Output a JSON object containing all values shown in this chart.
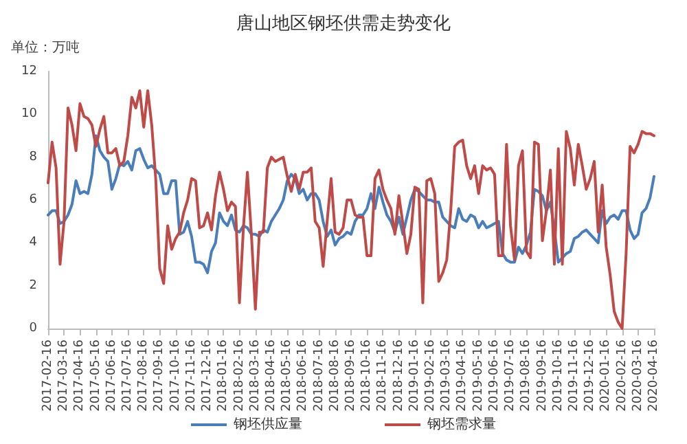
{
  "chart_data": {
    "type": "line",
    "title": "唐山地区钢坯供需走势变化",
    "annotations": [
      "单位：万吨"
    ],
    "categories": [
      "2017-02-16",
      null,
      null,
      null,
      "2017-03-16",
      null,
      null,
      null,
      "2017-04-16",
      null,
      null,
      null,
      "2017-05-16",
      null,
      null,
      null,
      "2017-06-16",
      null,
      null,
      null,
      "2017-07-16",
      null,
      null,
      null,
      "2017-08-16",
      null,
      null,
      null,
      "2017-09-16",
      null,
      null,
      null,
      "2017-10-16",
      null,
      null,
      null,
      "2017-11-16",
      null,
      null,
      null,
      "2017-12-16",
      null,
      null,
      null,
      "2018-01-16",
      null,
      null,
      null,
      "2018-02-16",
      null,
      null,
      null,
      "2018-03-16",
      null,
      null,
      null,
      "2018-04-16",
      null,
      null,
      null,
      "2018-05-16",
      null,
      null,
      null,
      "2018-06-16",
      null,
      null,
      null,
      "2018-07-16",
      null,
      null,
      null,
      "2018-08-16",
      null,
      null,
      null,
      "2018-09-16",
      null,
      null,
      null,
      "2018-10-16",
      null,
      null,
      null,
      "2018-11-16",
      null,
      null,
      null,
      "2018-12-16",
      null,
      null,
      null,
      "2019-01-16",
      null,
      null,
      null,
      "2019-02-16",
      null,
      null,
      null,
      "2019-03-16",
      null,
      null,
      null,
      "2019-04-16",
      null,
      null,
      null,
      "2019-05-16",
      null,
      null,
      null,
      "2019-06-16",
      null,
      null,
      null,
      "2019-07-16",
      null,
      null,
      null,
      "2019-08-16",
      null,
      null,
      null,
      "2019-09-16",
      null,
      null,
      null,
      "2019-10-16",
      null,
      null,
      null,
      "2019-11-16",
      null,
      null,
      null,
      "2019-12-16",
      null,
      null,
      null,
      "2020-01-16",
      null,
      null,
      null,
      "2020-02-16",
      null,
      null,
      null,
      "2020-03-16",
      null,
      null,
      null,
      "2020-04-16"
    ],
    "series": [
      {
        "name": "钢坯供应量",
        "color": "#4a7ebb",
        "values": [
          5.3,
          5.5,
          5.5,
          4.9,
          5.0,
          5.3,
          5.8,
          6.9,
          6.3,
          6.4,
          6.3,
          7.2,
          9.0,
          8.3,
          8.0,
          7.8,
          6.5,
          7.0,
          7.7,
          7.6,
          7.8,
          7.4,
          8.3,
          8.4,
          7.9,
          7.5,
          7.6,
          7.4,
          7.2,
          6.3,
          6.3,
          6.9,
          6.9,
          4.4,
          4.5,
          5.0,
          4.3,
          3.1,
          3.1,
          3.0,
          2.6,
          3.6,
          4.0,
          5.4,
          5.0,
          4.8,
          5.3,
          4.6,
          4.5,
          4.8,
          4.7,
          4.4,
          4.4,
          4.3,
          4.6,
          4.5,
          5.0,
          5.3,
          5.6,
          6.0,
          6.9,
          7.2,
          7.0,
          6.3,
          6.5,
          6.0,
          6.3,
          6.3,
          6.0,
          5.0,
          4.3,
          4.6,
          3.9,
          4.2,
          4.3,
          4.5,
          4.4,
          5.0,
          5.3,
          5.3,
          5.6,
          6.3,
          5.6,
          6.6,
          5.9,
          5.3,
          5.0,
          4.5,
          5.2,
          4.4,
          5.2,
          6.0,
          6.5,
          6.4,
          6.2,
          6.0,
          6.0,
          5.9,
          5.9,
          5.2,
          5.0,
          4.8,
          4.7,
          5.6,
          5.1,
          5.0,
          5.3,
          5.2,
          4.7,
          5.0,
          4.7,
          4.8,
          4.9,
          5.0,
          3.5,
          3.2,
          3.1,
          3.1,
          3.8,
          3.5,
          3.9,
          4.5,
          6.5,
          6.4,
          6.2,
          5.5,
          5.9,
          4.6,
          3.1,
          3.3,
          3.5,
          3.6,
          4.2,
          4.3,
          4.5,
          4.6,
          4.4,
          4.2,
          4.0,
          5.5,
          4.9,
          5.2,
          5.3,
          5.1,
          5.5,
          5.5,
          4.6,
          4.2,
          4.4,
          5.4,
          5.6,
          6.1,
          7.1
        ]
      },
      {
        "name": "钢坯需求量",
        "color": "#be4b48",
        "values": [
          6.8,
          8.7,
          7.5,
          3.0,
          5.0,
          10.3,
          9.5,
          8.3,
          10.5,
          9.9,
          9.8,
          9.5,
          8.5,
          9.3,
          9.9,
          8.2,
          8.2,
          8.4,
          7.6,
          7.8,
          9.0,
          10.8,
          10.3,
          11.1,
          9.4,
          11.1,
          9.5,
          7.0,
          2.8,
          2.1,
          4.8,
          3.7,
          4.2,
          4.5,
          5.4,
          6.0,
          7.0,
          6.9,
          4.7,
          4.8,
          5.4,
          4.6,
          6.2,
          7.3,
          6.5,
          5.5,
          5.9,
          5.7,
          1.2,
          4.7,
          7.3,
          4.4,
          0.9,
          4.5,
          4.5,
          7.5,
          8.0,
          7.8,
          7.9,
          8.0,
          7.1,
          6.4,
          7.2,
          6.5,
          7.3,
          7.3,
          7.5,
          5.0,
          4.7,
          2.9,
          5.0,
          7.0,
          4.5,
          4.4,
          4.7,
          6.0,
          6.0,
          5.3,
          5.2,
          5.2,
          3.4,
          3.4,
          7.0,
          7.4,
          6.5,
          6.0,
          5.6,
          4.4,
          6.2,
          4.9,
          3.5,
          4.4,
          6.6,
          6.5,
          1.2,
          6.9,
          7.0,
          6.3,
          2.2,
          2.6,
          3.2,
          5.5,
          8.5,
          8.7,
          8.8,
          7.6,
          7.0,
          7.6,
          6.3,
          7.6,
          7.4,
          7.5,
          7.2,
          3.4,
          3.4,
          8.6,
          4.8,
          3.2,
          7.6,
          8.3,
          3.6,
          3.3,
          8.7,
          8.6,
          4.1,
          5.5,
          7.4,
          3.0,
          8.4,
          3.0,
          9.2,
          8.4,
          6.7,
          8.6,
          7.6,
          6.5,
          7.0,
          7.8,
          4.5,
          6.7,
          3.8,
          2.5,
          0.8,
          0.3,
          0.0,
          3.5,
          8.5,
          8.2,
          8.6,
          9.2,
          9.1,
          9.1,
          9.0
        ]
      }
    ],
    "ylim": [
      0,
      12
    ],
    "yticks": [
      0,
      2,
      4,
      6,
      8,
      10,
      12
    ],
    "legend": "bottom",
    "line_style": "solid",
    "marker": "none"
  }
}
